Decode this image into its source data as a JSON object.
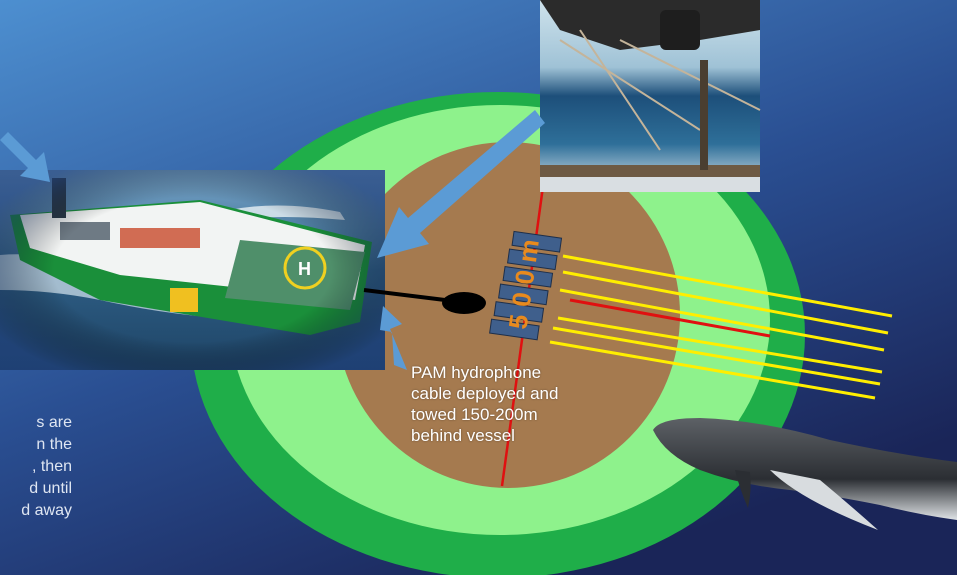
{
  "zone_label": "500m",
  "pam_caption": [
    "PAM hydrophone",
    "cable deployed and",
    "towed 150-200m",
    "behind vessel"
  ],
  "side_caption": [
    "s are",
    "n the",
    ", then",
    "d until",
    "d away"
  ],
  "helipad_letter": "H",
  "colors": {
    "background_top": "#3f7fc0",
    "background_bottom": "#1b2a5e",
    "outer_ring": "#1fae49",
    "inner_ring": "#8ef28c",
    "exclusion_zone": "#a57a4f",
    "streamer": "#ffee00",
    "center_line": "#e01010",
    "arrow": "#5b9bd5",
    "hull": "#1a8f3a"
  }
}
